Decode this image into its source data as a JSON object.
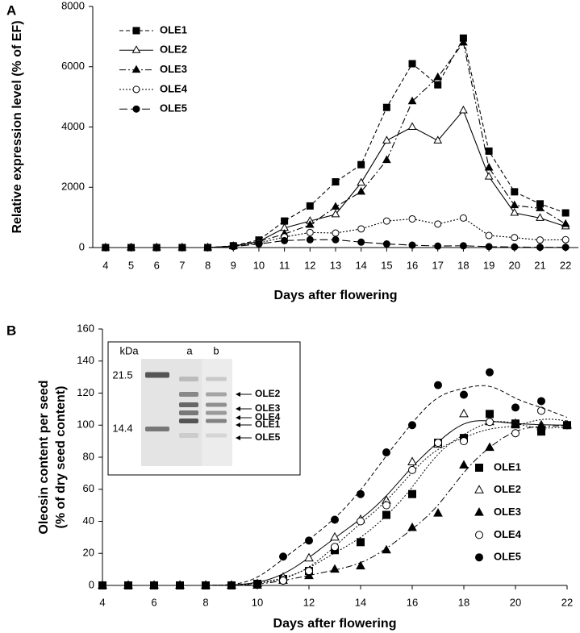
{
  "chart_data": [
    {
      "type": "line",
      "panel": "A",
      "xlabel": "Days after flowering",
      "ylabel": "Relative expression level (% of EF)",
      "x": [
        4,
        5,
        6,
        7,
        8,
        9,
        10,
        11,
        12,
        13,
        14,
        15,
        16,
        17,
        18,
        19,
        20,
        21,
        22
      ],
      "xlim": [
        3.5,
        22.5
      ],
      "xticks": [
        4,
        5,
        6,
        7,
        8,
        9,
        10,
        11,
        12,
        13,
        14,
        15,
        16,
        17,
        18,
        19,
        20,
        21,
        22
      ],
      "ylim": [
        0,
        8000
      ],
      "yticks": [
        0,
        2000,
        4000,
        6000,
        8000
      ],
      "legend": "upper left",
      "series": [
        {
          "name": "OLE1",
          "color": "#000000",
          "marker": "square",
          "filled": true,
          "line_style": "dashed",
          "values": [
            0,
            0,
            0,
            0,
            0,
            60,
            250,
            880,
            1380,
            2180,
            2750,
            4650,
            6100,
            5400,
            6950,
            3200,
            1850,
            1450,
            1150
          ]
        },
        {
          "name": "OLE2",
          "color": "#000000",
          "marker": "triangle",
          "filled": false,
          "line_style": "solid",
          "values": [
            0,
            0,
            0,
            0,
            0,
            50,
            200,
            650,
            880,
            1100,
            2150,
            3550,
            4000,
            3550,
            4550,
            2350,
            1150,
            980,
            700
          ]
        },
        {
          "name": "OLE3",
          "color": "#000000",
          "marker": "triangle",
          "filled": true,
          "line_style": "dashdot",
          "values": [
            0,
            0,
            0,
            0,
            0,
            40,
            200,
            450,
            750,
            1350,
            1850,
            2900,
            4850,
            5650,
            6800,
            2650,
            1400,
            1300,
            780
          ]
        },
        {
          "name": "OLE4",
          "color": "#000000",
          "marker": "circle",
          "filled": false,
          "line_style": "dotted",
          "values": [
            0,
            0,
            0,
            0,
            0,
            40,
            150,
            350,
            500,
            480,
            620,
            880,
            950,
            780,
            980,
            400,
            330,
            250,
            260
          ]
        },
        {
          "name": "OLE5",
          "color": "#000000",
          "marker": "circle",
          "filled": true,
          "line_style": "longdash",
          "values": [
            0,
            0,
            0,
            0,
            0,
            30,
            120,
            230,
            260,
            260,
            180,
            120,
            80,
            50,
            60,
            30,
            20,
            10,
            10
          ]
        }
      ]
    },
    {
      "type": "scatter",
      "panel": "B",
      "xlabel": "Days after flowering",
      "ylabel": [
        "Oleosin content per seed",
        "(% of dry seed content)"
      ],
      "x": [
        4,
        5,
        6,
        7,
        8,
        9,
        10,
        11,
        12,
        13,
        14,
        15,
        16,
        17,
        18,
        19,
        20,
        21,
        22
      ],
      "xlim": [
        4,
        22
      ],
      "xticks": [
        4,
        6,
        8,
        10,
        12,
        14,
        16,
        18,
        20,
        22
      ],
      "ylim": [
        0,
        160
      ],
      "yticks": [
        0,
        20,
        40,
        60,
        80,
        100,
        120,
        140,
        160
      ],
      "legend": "lower right",
      "series": [
        {
          "name": "OLE1",
          "color": "#000000",
          "marker": "square",
          "filled": true,
          "line_style": "dotted",
          "values": [
            0,
            0,
            0,
            0,
            0,
            0,
            1,
            4,
            9,
            22,
            27,
            44,
            57,
            89,
            92,
            107,
            101,
            96,
            100
          ]
        },
        {
          "name": "OLE2",
          "color": "#000000",
          "marker": "triangle",
          "filled": false,
          "line_style": "solid",
          "values": [
            0,
            0,
            0,
            0,
            0,
            0,
            1,
            5,
            17,
            30,
            41,
            53,
            77,
            88,
            107,
            102,
            101,
            100,
            100
          ]
        },
        {
          "name": "OLE3",
          "color": "#000000",
          "marker": "triangle",
          "filled": true,
          "line_style": "dashdot",
          "values": [
            0,
            0,
            0,
            0,
            0,
            0,
            0,
            3,
            6,
            10,
            12,
            22,
            36,
            45,
            75,
            86,
            100,
            99,
            100
          ]
        },
        {
          "name": "OLE4",
          "color": "#000000",
          "marker": "circle",
          "filled": false,
          "line_style": "dotted",
          "values": [
            0,
            0,
            0,
            0,
            0,
            0,
            1,
            3,
            9,
            24,
            40,
            50,
            72,
            89,
            90,
            102,
            95,
            109,
            100
          ]
        },
        {
          "name": "OLE5",
          "color": "#000000",
          "marker": "circle",
          "filled": true,
          "line_style": "dashed",
          "values": [
            0,
            0,
            0,
            0,
            0,
            0,
            1,
            18,
            28,
            41,
            57,
            83,
            100,
            125,
            119,
            133,
            111,
            115,
            100
          ]
        }
      ],
      "inset": {
        "header": [
          "kDa",
          "a",
          "b"
        ],
        "markers": [
          "21.5",
          "14.4"
        ],
        "bands": [
          "OLE2",
          "OLE3",
          "OLE4",
          "OLE1",
          "OLE5"
        ]
      }
    }
  ]
}
